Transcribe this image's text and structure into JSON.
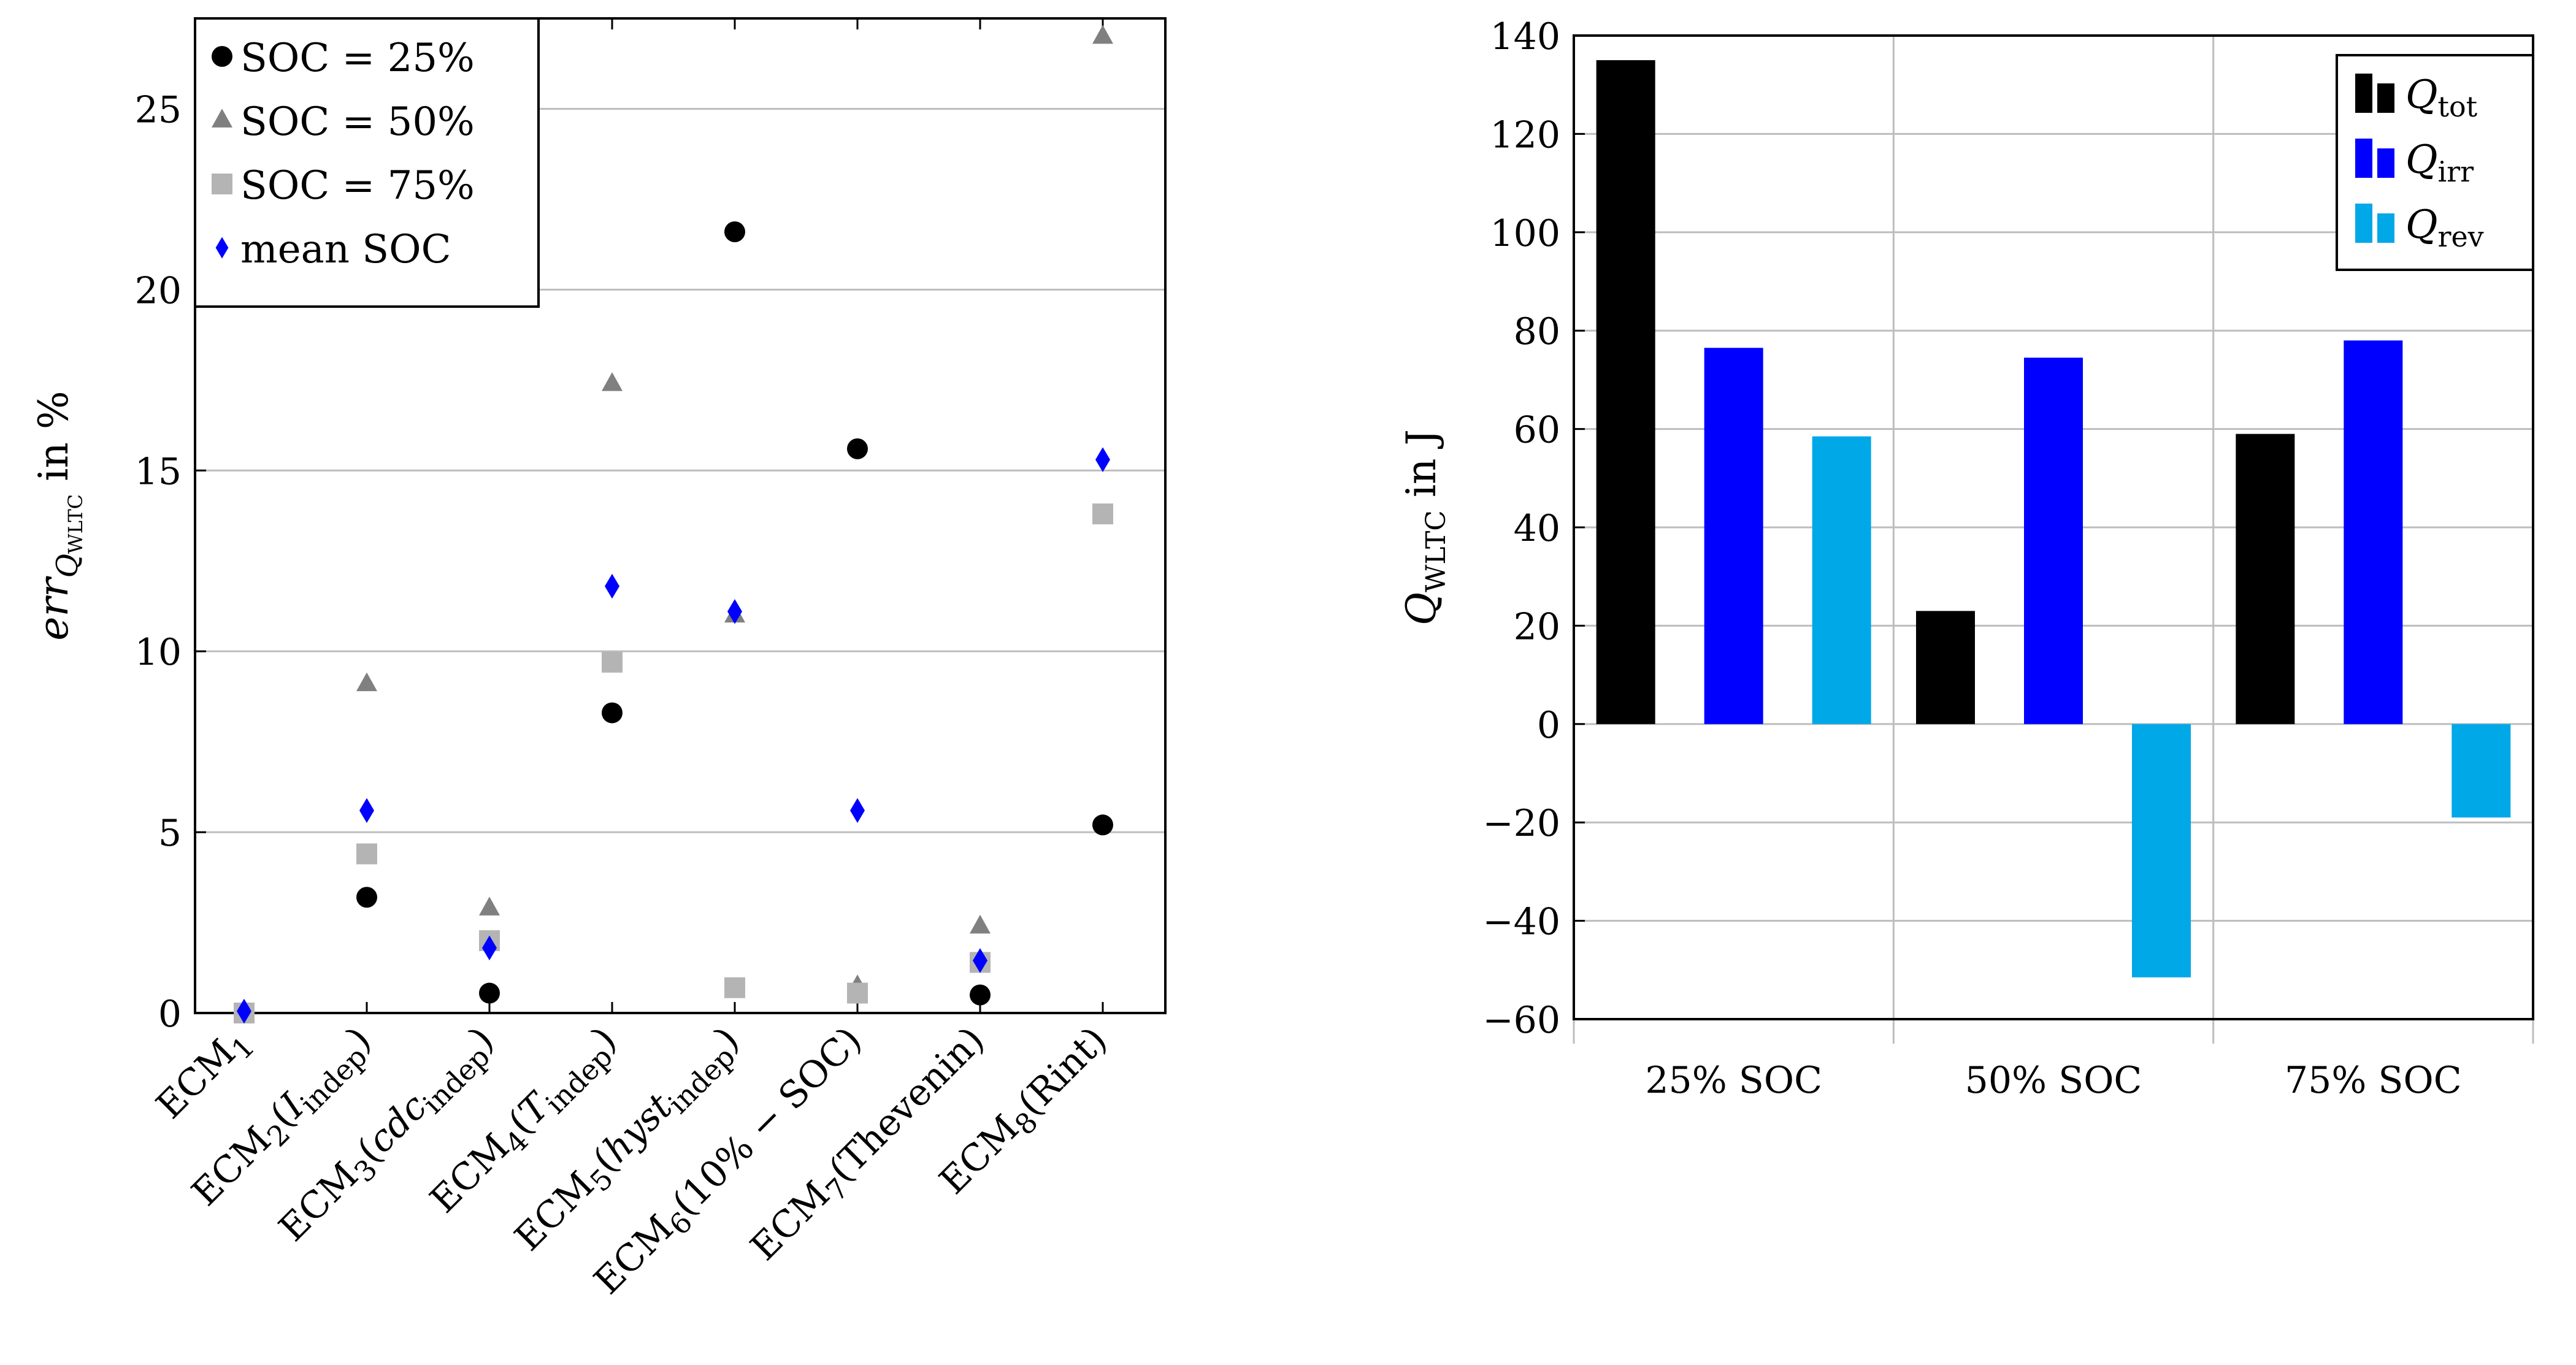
{
  "chart_data": [
    {
      "type": "scatter",
      "xlabel": "",
      "ylabel": "err_{Q_WLTC} in %",
      "ylabel_parts": {
        "main": "err",
        "sub": "Q",
        "subsub": "WLTC",
        "suffix": "in %"
      },
      "ylim": [
        0,
        27.5
      ],
      "yticks": [
        0,
        5,
        10,
        15,
        20,
        25
      ],
      "grid": "horizontal",
      "legend_position": "top-left",
      "categories": [
        {
          "base": "ECM",
          "sub": "1"
        },
        {
          "base": "ECM",
          "sub": "2",
          "open": "(",
          "arg": "I",
          "argItalic": true,
          "argSub": "indep",
          "close": ")"
        },
        {
          "base": "ECM",
          "sub": "3",
          "open": "(",
          "arg": "cdc",
          "argItalic": true,
          "argSub": "indep",
          "close": ")"
        },
        {
          "base": "ECM",
          "sub": "4",
          "open": "(",
          "arg": "T",
          "argItalic": true,
          "argSub": "indep",
          "close": ")"
        },
        {
          "base": "ECM",
          "sub": "5",
          "open": "(",
          "arg": "hyst",
          "argItalic": true,
          "argSub": "indep",
          "close": ")"
        },
        {
          "base": "ECM",
          "sub": "6",
          "open": "(",
          "arg": "10% − SOC",
          "argItalic": false,
          "argSub": "",
          "close": ")"
        },
        {
          "base": "ECM",
          "sub": "7",
          "open": "(",
          "arg": "Thevenin",
          "argItalic": false,
          "argSub": "",
          "close": ")"
        },
        {
          "base": "ECM",
          "sub": "8",
          "open": "(",
          "arg": "Rint",
          "argItalic": false,
          "argSub": "",
          "close": ")"
        }
      ],
      "series": [
        {
          "name": "SOC = 25%",
          "marker": "circle",
          "color": "#000000",
          "values": [
            0,
            3.2,
            0.55,
            8.3,
            21.6,
            15.6,
            0.5,
            5.2
          ]
        },
        {
          "name": "SOC = 50%",
          "marker": "triangle",
          "color": "#808080",
          "values": [
            0,
            9.1,
            2.9,
            17.4,
            11.0,
            0.75,
            2.4,
            27.0
          ]
        },
        {
          "name": "SOC = 75%",
          "marker": "square",
          "color": "#b4b4b4",
          "values": [
            0,
            4.4,
            2.0,
            9.7,
            0.7,
            0.55,
            1.4,
            13.8
          ]
        },
        {
          "name": "mean SOC",
          "marker": "diamond",
          "color": "#0000ff",
          "values": [
            0.05,
            5.6,
            1.8,
            11.8,
            11.1,
            5.6,
            1.45,
            15.3
          ]
        }
      ]
    },
    {
      "type": "bar",
      "xlabel": "",
      "ylabel": "Q_WLTC in J",
      "ylabel_parts": {
        "main": "Q",
        "sub": "WLTC",
        "suffix": "in J"
      },
      "ylim": [
        -60,
        140
      ],
      "yticks": [
        -60,
        -40,
        -20,
        0,
        20,
        40,
        60,
        80,
        100,
        120,
        140
      ],
      "ytick_labels": [
        "−60",
        "−40",
        "−20",
        "0",
        "20",
        "40",
        "60",
        "80",
        "100",
        "120",
        "140"
      ],
      "grid": "both",
      "legend_position": "top-right",
      "categories": [
        "25% SOC",
        "50% SOC",
        "75% SOC"
      ],
      "series": [
        {
          "name": "Q_tot",
          "label_main": "Q",
          "label_sub": "tot",
          "color": "#000000",
          "values": [
            135,
            23,
            59
          ]
        },
        {
          "name": "Q_irr",
          "label_main": "Q",
          "label_sub": "irr",
          "color": "#0000ff",
          "values": [
            76.5,
            74.5,
            78
          ]
        },
        {
          "name": "Q_rev",
          "label_main": "Q",
          "label_sub": "rev",
          "color": "#00a8e8",
          "values": [
            58.5,
            -51.5,
            -19
          ]
        }
      ]
    }
  ]
}
